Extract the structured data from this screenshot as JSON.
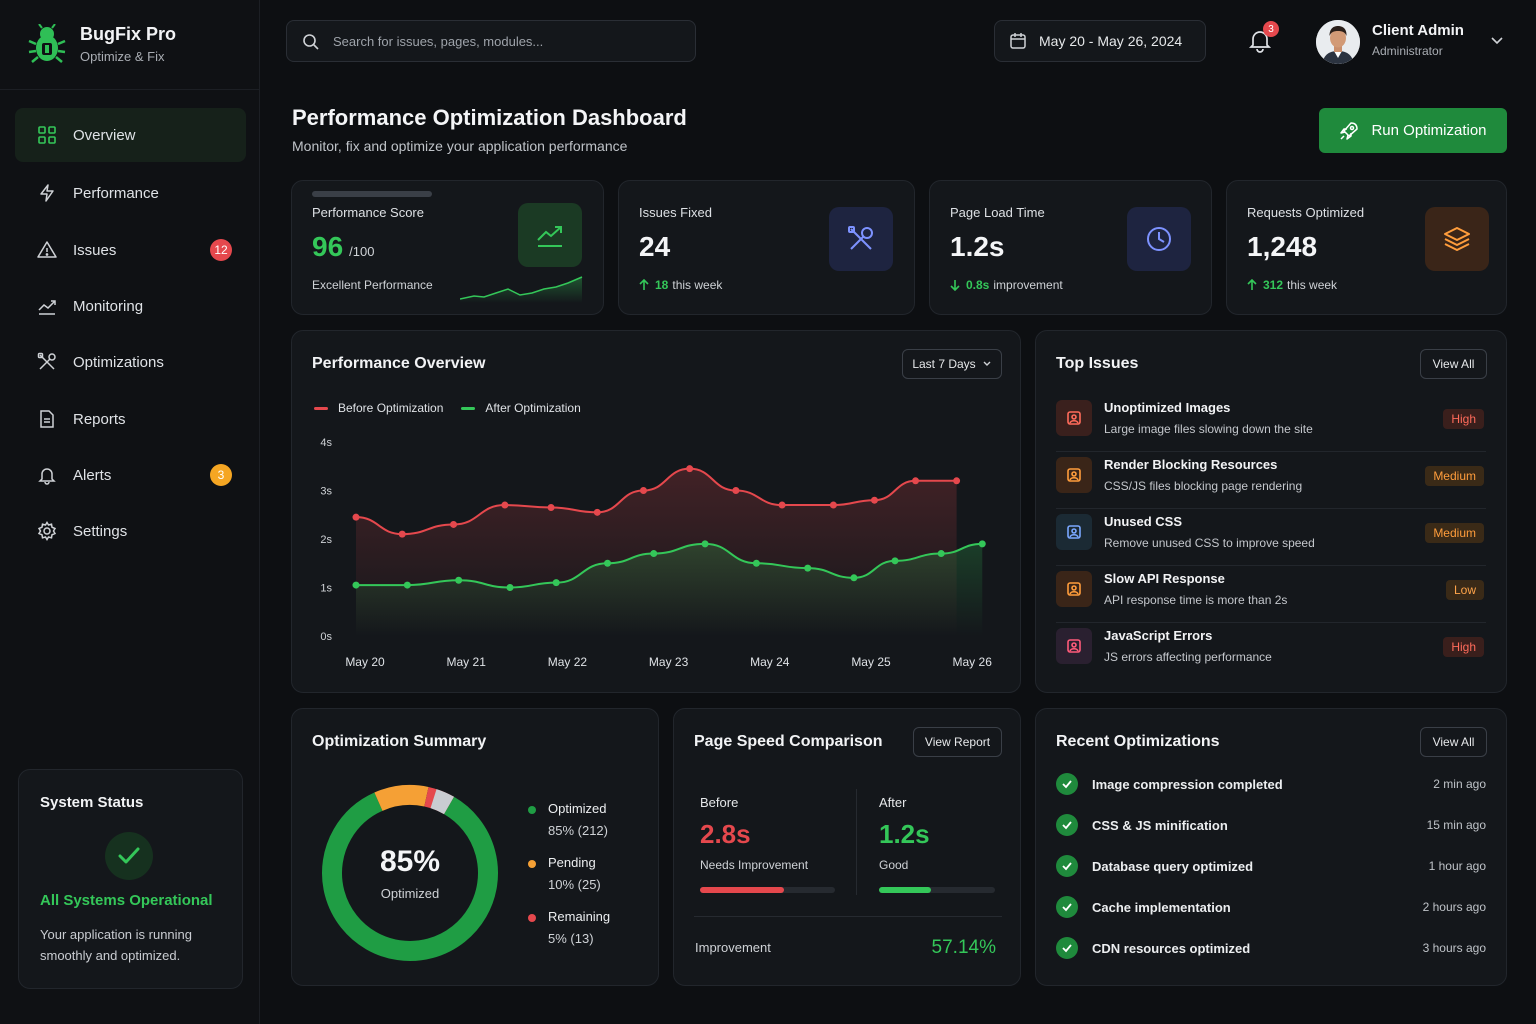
{
  "brand": {
    "name": "BugFix Pro",
    "tagline": "Optimize & Fix"
  },
  "nav": [
    {
      "label": "Overview",
      "icon": "grid-icon",
      "active": true
    },
    {
      "label": "Performance",
      "icon": "bolt-icon"
    },
    {
      "label": "Issues",
      "icon": "warning-icon",
      "badge": "12",
      "badge_color": "#e5484d"
    },
    {
      "label": "Monitoring",
      "icon": "trend-icon"
    },
    {
      "label": "Optimizations",
      "icon": "tools-icon"
    },
    {
      "label": "Reports",
      "icon": "document-icon"
    },
    {
      "label": "Alerts",
      "icon": "bell-icon",
      "badge": "3",
      "badge_color": "#f5a623"
    },
    {
      "label": "Settings",
      "icon": "gear-icon"
    }
  ],
  "system_status": {
    "title": "System Status",
    "status": "All Systems Operational",
    "description": "Your application is running smoothly and optimized."
  },
  "header": {
    "search_placeholder": "Search for issues, pages, modules...",
    "date_range": "May 20 - May 26, 2024",
    "notifications": "3",
    "user_name": "Client Admin",
    "user_role": "Administrator"
  },
  "page": {
    "title": "Performance Optimization Dashboard",
    "subtitle": "Monitor, fix and optimize your application performance",
    "run_button": "Run Optimization"
  },
  "stats": {
    "score": {
      "label": "Performance Score",
      "value": "96",
      "suffix": "/100",
      "note": "Excellent Performance"
    },
    "issues_fixed": {
      "label": "Issues Fixed",
      "value": "24",
      "delta": "18",
      "note": "this week"
    },
    "load_time": {
      "label": "Page Load Time",
      "value": "1.2s",
      "delta": "0.8s",
      "note": "improvement"
    },
    "requests": {
      "label": "Requests Optimized",
      "value": "1,248",
      "delta": "312",
      "note": "this week"
    }
  },
  "overview": {
    "title": "Performance Overview",
    "range": "Last 7 Days"
  },
  "chart_data": {
    "type": "line",
    "title": "Performance Overview",
    "x": [
      "May 20",
      "May 21",
      "May 22",
      "May 23",
      "May 24",
      "May 25",
      "May 26"
    ],
    "y_ticks": [
      "0s",
      "1s",
      "2s",
      "3s",
      "4s"
    ],
    "ylim": [
      0,
      4
    ],
    "legend_placement": "top-left",
    "grid": false,
    "series": [
      {
        "name": "Before Optimization",
        "color": "#e5484d",
        "points": [
          [
            0,
            2.45
          ],
          [
            0.45,
            2.1
          ],
          [
            0.95,
            2.3
          ],
          [
            1.45,
            2.7
          ],
          [
            1.9,
            2.65
          ],
          [
            2.35,
            2.55
          ],
          [
            2.8,
            3.0
          ],
          [
            3.25,
            3.45
          ],
          [
            3.7,
            3.0
          ],
          [
            4.15,
            2.7
          ],
          [
            4.65,
            2.7
          ],
          [
            5.05,
            2.8
          ],
          [
            5.45,
            3.2
          ],
          [
            5.85,
            3.2
          ]
        ]
      },
      {
        "name": "After Optimization",
        "color": "#34c759",
        "points": [
          [
            0,
            1.05
          ],
          [
            0.5,
            1.05
          ],
          [
            1.0,
            1.15
          ],
          [
            1.5,
            1.0
          ],
          [
            1.95,
            1.1
          ],
          [
            2.45,
            1.5
          ],
          [
            2.9,
            1.7
          ],
          [
            3.4,
            1.9
          ],
          [
            3.9,
            1.5
          ],
          [
            4.4,
            1.4
          ],
          [
            4.85,
            1.2
          ],
          [
            5.25,
            1.55
          ],
          [
            5.7,
            1.7
          ],
          [
            6.1,
            1.9
          ]
        ]
      }
    ]
  },
  "top_issues": {
    "title": "Top Issues",
    "view_all": "View All",
    "items": [
      {
        "title": "Unoptimized Images",
        "desc": "Large image files slowing down the site",
        "severity": "High",
        "level": "high",
        "icon": "image-icon",
        "icon_bg": "#3a201d",
        "icon_color": "#ff6b5b"
      },
      {
        "title": "Render Blocking Resources",
        "desc": "CSS/JS files blocking page rendering",
        "severity": "Medium",
        "level": "medium",
        "icon": "code-icon",
        "icon_bg": "#3a2518",
        "icon_color": "#ff9d3c"
      },
      {
        "title": "Unused CSS",
        "desc": "Remove unused CSS to improve speed",
        "severity": "Medium",
        "level": "medium",
        "icon": "css-icon",
        "icon_bg": "#1b2a34",
        "icon_color": "#7aa7ff"
      },
      {
        "title": "Slow API Response",
        "desc": "API response time is more than 2s",
        "severity": "Low",
        "level": "low",
        "icon": "api-icon",
        "icon_bg": "#3a2518",
        "icon_color": "#ff9d3c"
      },
      {
        "title": "JavaScript Errors",
        "desc": "JS errors affecting performance",
        "severity": "High",
        "level": "high",
        "icon": "bug-icon",
        "icon_bg": "#2a2030",
        "icon_color": "#ff5b7a"
      }
    ]
  },
  "summary": {
    "title": "Optimization Summary",
    "center_value": "85%",
    "center_label": "Optimized",
    "items": [
      {
        "label": "Optimized",
        "value": "85% (212)",
        "color": "#1f9d44",
        "pct": 85
      },
      {
        "label": "Pending",
        "value": "10% (25)",
        "color": "#f5a035",
        "pct": 10
      },
      {
        "label": "Remaining",
        "value": "5% (13)",
        "color": "#e5484d",
        "pct": 5
      }
    ]
  },
  "speed": {
    "title": "Page Speed Comparison",
    "view_report": "View Report",
    "before_label": "Before",
    "before_value": "2.8s",
    "before_note": "Needs Improvement",
    "before_fill": 0.62,
    "after_label": "After",
    "after_value": "1.2s",
    "after_note": "Good",
    "after_fill": 0.45,
    "improvement_label": "Improvement",
    "improvement_value": "57.14%"
  },
  "recent": {
    "title": "Recent Optimizations",
    "view_all": "View All",
    "items": [
      {
        "text": "Image compression completed",
        "time": "2 min ago"
      },
      {
        "text": "CSS & JS minification",
        "time": "15 min ago"
      },
      {
        "text": "Database query optimized",
        "time": "1 hour ago"
      },
      {
        "text": "Cache implementation",
        "time": "2 hours ago"
      },
      {
        "text": "CDN resources optimized",
        "time": "3 hours ago"
      }
    ]
  }
}
